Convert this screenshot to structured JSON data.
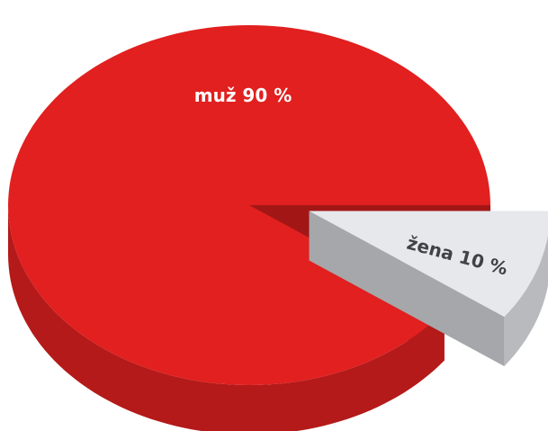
{
  "chart_data": {
    "type": "pie",
    "categories": [
      "muž",
      "žena"
    ],
    "values": [
      90,
      10
    ],
    "value_labels": [
      "90 %",
      "10 %"
    ],
    "colors": [
      "#e1201f",
      "#e6e8ec"
    ],
    "style": "3d",
    "exploded": [
      false,
      true
    ]
  }
}
